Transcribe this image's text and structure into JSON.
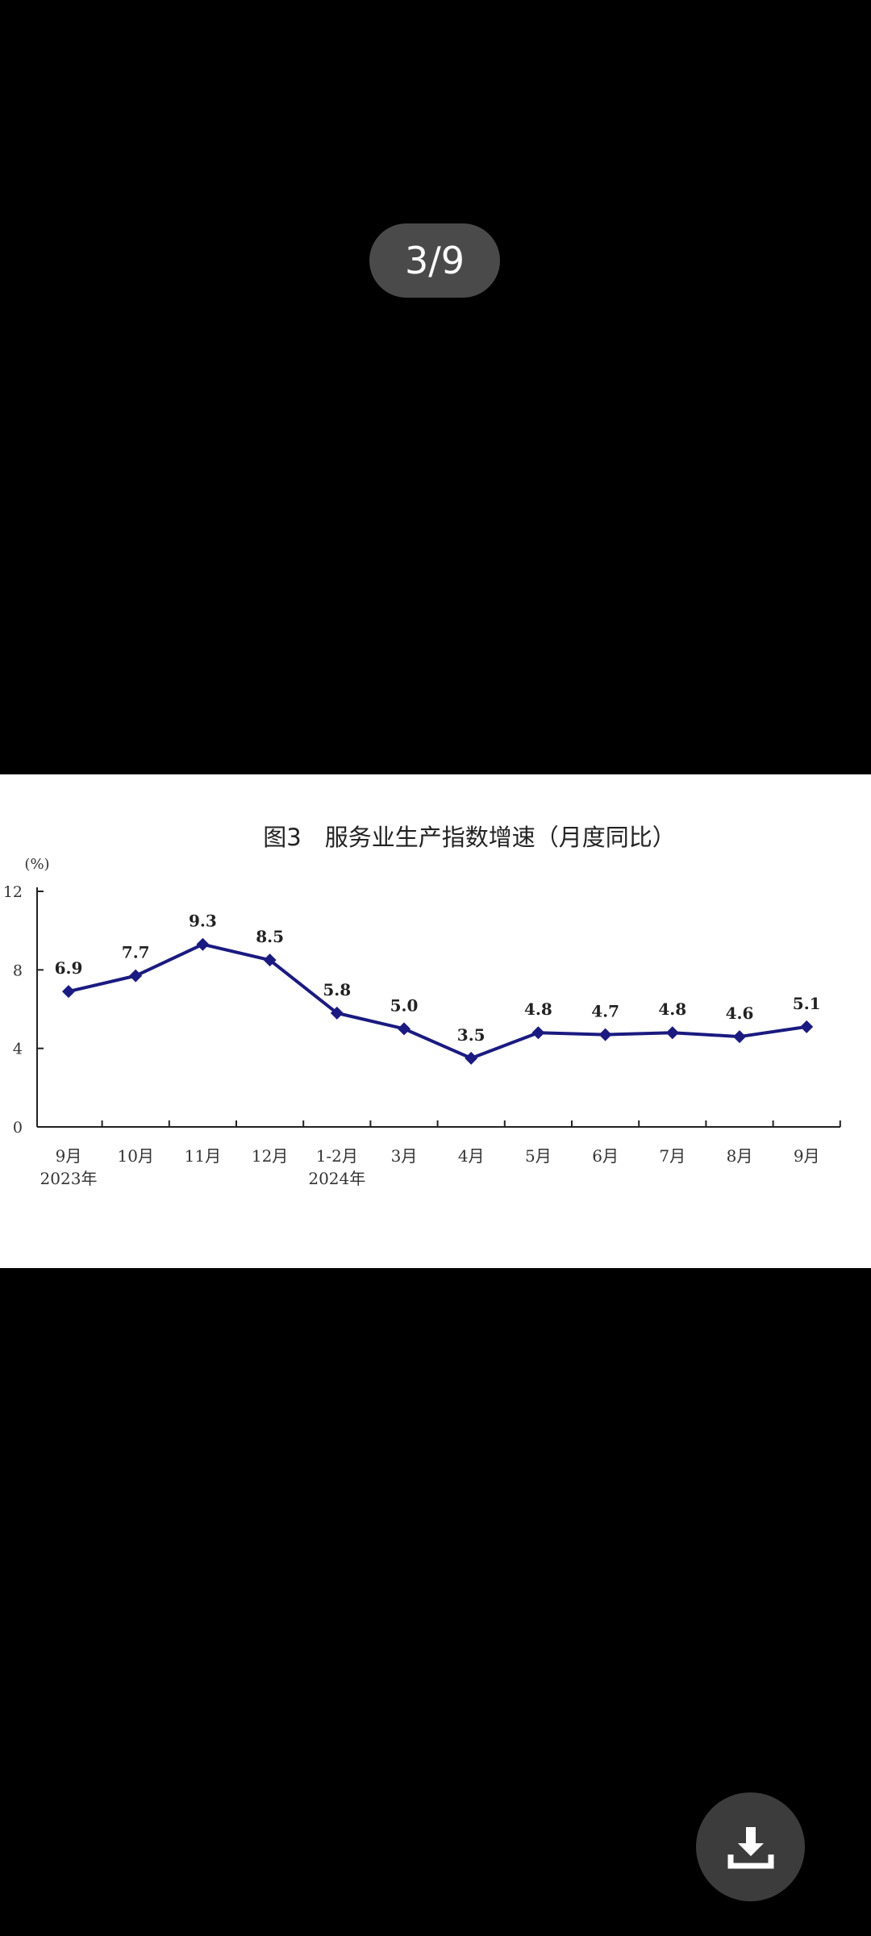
{
  "viewer": {
    "page_indicator": "3/9",
    "download_icon": "download-icon"
  },
  "chart_data": {
    "type": "line",
    "title": "图3　服务业生产指数增速（月度同比）",
    "ylabel": "(%)",
    "ylim": [
      0,
      12
    ],
    "yticks": [
      0,
      4,
      8,
      12
    ],
    "categories": [
      "9月",
      "10月",
      "11月",
      "12月",
      "1-2月",
      "3月",
      "4月",
      "5月",
      "6月",
      "7月",
      "8月",
      "9月"
    ],
    "year_labels": [
      {
        "category_index": 0,
        "text": "2023年"
      },
      {
        "category_index": 4,
        "text": "2024年"
      }
    ],
    "series": [
      {
        "values": [
          6.9,
          7.7,
          9.3,
          8.5,
          5.8,
          5.0,
          3.5,
          4.8,
          4.7,
          4.8,
          4.6,
          5.1
        ],
        "color": "#1a1a80"
      }
    ],
    "value_labels": [
      "6.9",
      "7.7",
      "9.3",
      "8.5",
      "5.8",
      "5.0",
      "3.5",
      "4.8",
      "4.7",
      "4.8",
      "4.6",
      "5.1"
    ],
    "grid": false,
    "legend": "none"
  }
}
